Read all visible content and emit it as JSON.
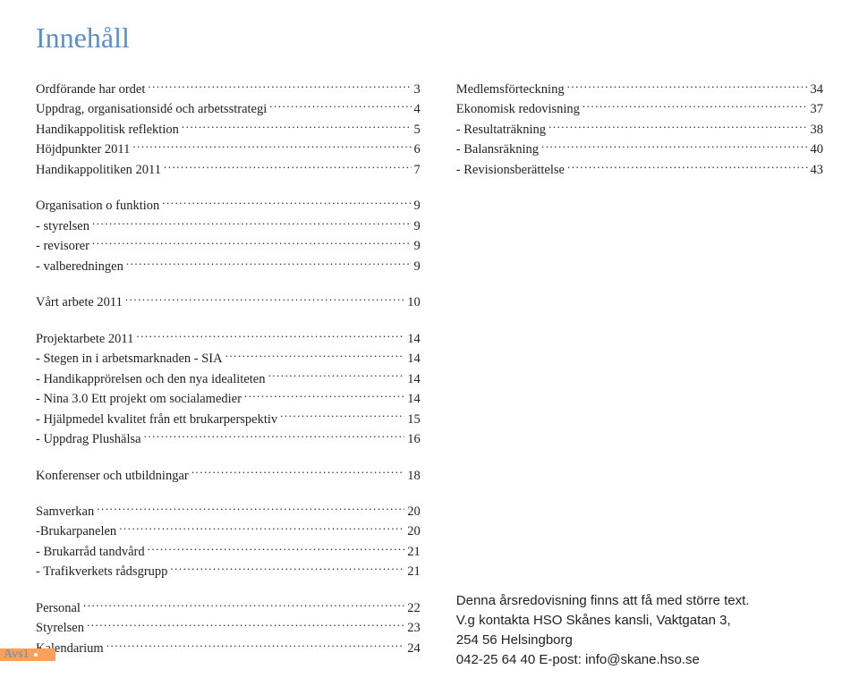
{
  "title": "Innehåll",
  "left": {
    "s1": [
      {
        "label": "Ordförande har ordet",
        "page": "3"
      },
      {
        "label": "Uppdrag, organisationsidé och arbetsstrategi",
        "page": "4"
      },
      {
        "label": "Handikappolitisk reflektion",
        "page": "5"
      },
      {
        "label": "Höjdpunkter 2011",
        "page": "6"
      },
      {
        "label": "Handikappolitiken 2011",
        "page": "7"
      }
    ],
    "s2": [
      {
        "label": "Organisation o funktion",
        "page": "9"
      },
      {
        "label": "- styrelsen",
        "page": "9"
      },
      {
        "label": "- revisorer",
        "page": "9"
      },
      {
        "label": "- valberedningen",
        "page": "9"
      }
    ],
    "s3": [
      {
        "label": "Vårt arbete 2011",
        "page": "10"
      }
    ],
    "s4": [
      {
        "label": "Projektarbete 2011",
        "page": "14"
      },
      {
        "label": "- Stegen in i arbetsmarknaden - SIA",
        "page": "14"
      },
      {
        "label": "- Handikapprörelsen och den nya idealiteten",
        "page": "14"
      },
      {
        "label": "- Nina 3.0 Ett projekt om socialamedier",
        "page": "14"
      },
      {
        "label": "- Hjälpmedel kvalitet från ett brukarperspektiv",
        "page": "15"
      },
      {
        "label": "- Uppdrag Plushälsa",
        "page": "16"
      }
    ],
    "s5": [
      {
        "label": "Konferenser och utbildningar",
        "page": "18"
      }
    ],
    "s6": [
      {
        "label": "Samverkan",
        "page": "20"
      },
      {
        "label": "-Brukarpanelen",
        "page": "20"
      },
      {
        "label": "- Brukarråd tandvård",
        "page": "21"
      },
      {
        "label": "- Trafikverkets rådsgrupp",
        "page": "21"
      }
    ],
    "s7": [
      {
        "label": "Personal",
        "page": "22"
      },
      {
        "label": "Styrelsen",
        "page": "23"
      },
      {
        "label": "Kalendarium",
        "page": "24"
      }
    ]
  },
  "right": {
    "s1": [
      {
        "label": "Medlemsförteckning",
        "page": "34"
      },
      {
        "label": "Ekonomisk redovisning",
        "page": "37"
      },
      {
        "label": "- Resultaträkning",
        "page": "38"
      },
      {
        "label": "- Balansräkning",
        "page": "40"
      },
      {
        "label": "- Revisionsberättelse",
        "page": "43"
      }
    ]
  },
  "note": {
    "l1": "Denna årsredovisning finns att få med större text.",
    "l2": "V.g kontakta HSO Skånes kansli, Vaktgatan 3,",
    "l3": "254 56 Helsingborg",
    "l4": "042-25 64 40  E-post:  info@skane.hso.se"
  },
  "footer": "Avs1",
  "colors": {
    "title": "#5b8fc7",
    "accent": "#f7a15a",
    "text": "#222222",
    "background": "#ffffff"
  }
}
